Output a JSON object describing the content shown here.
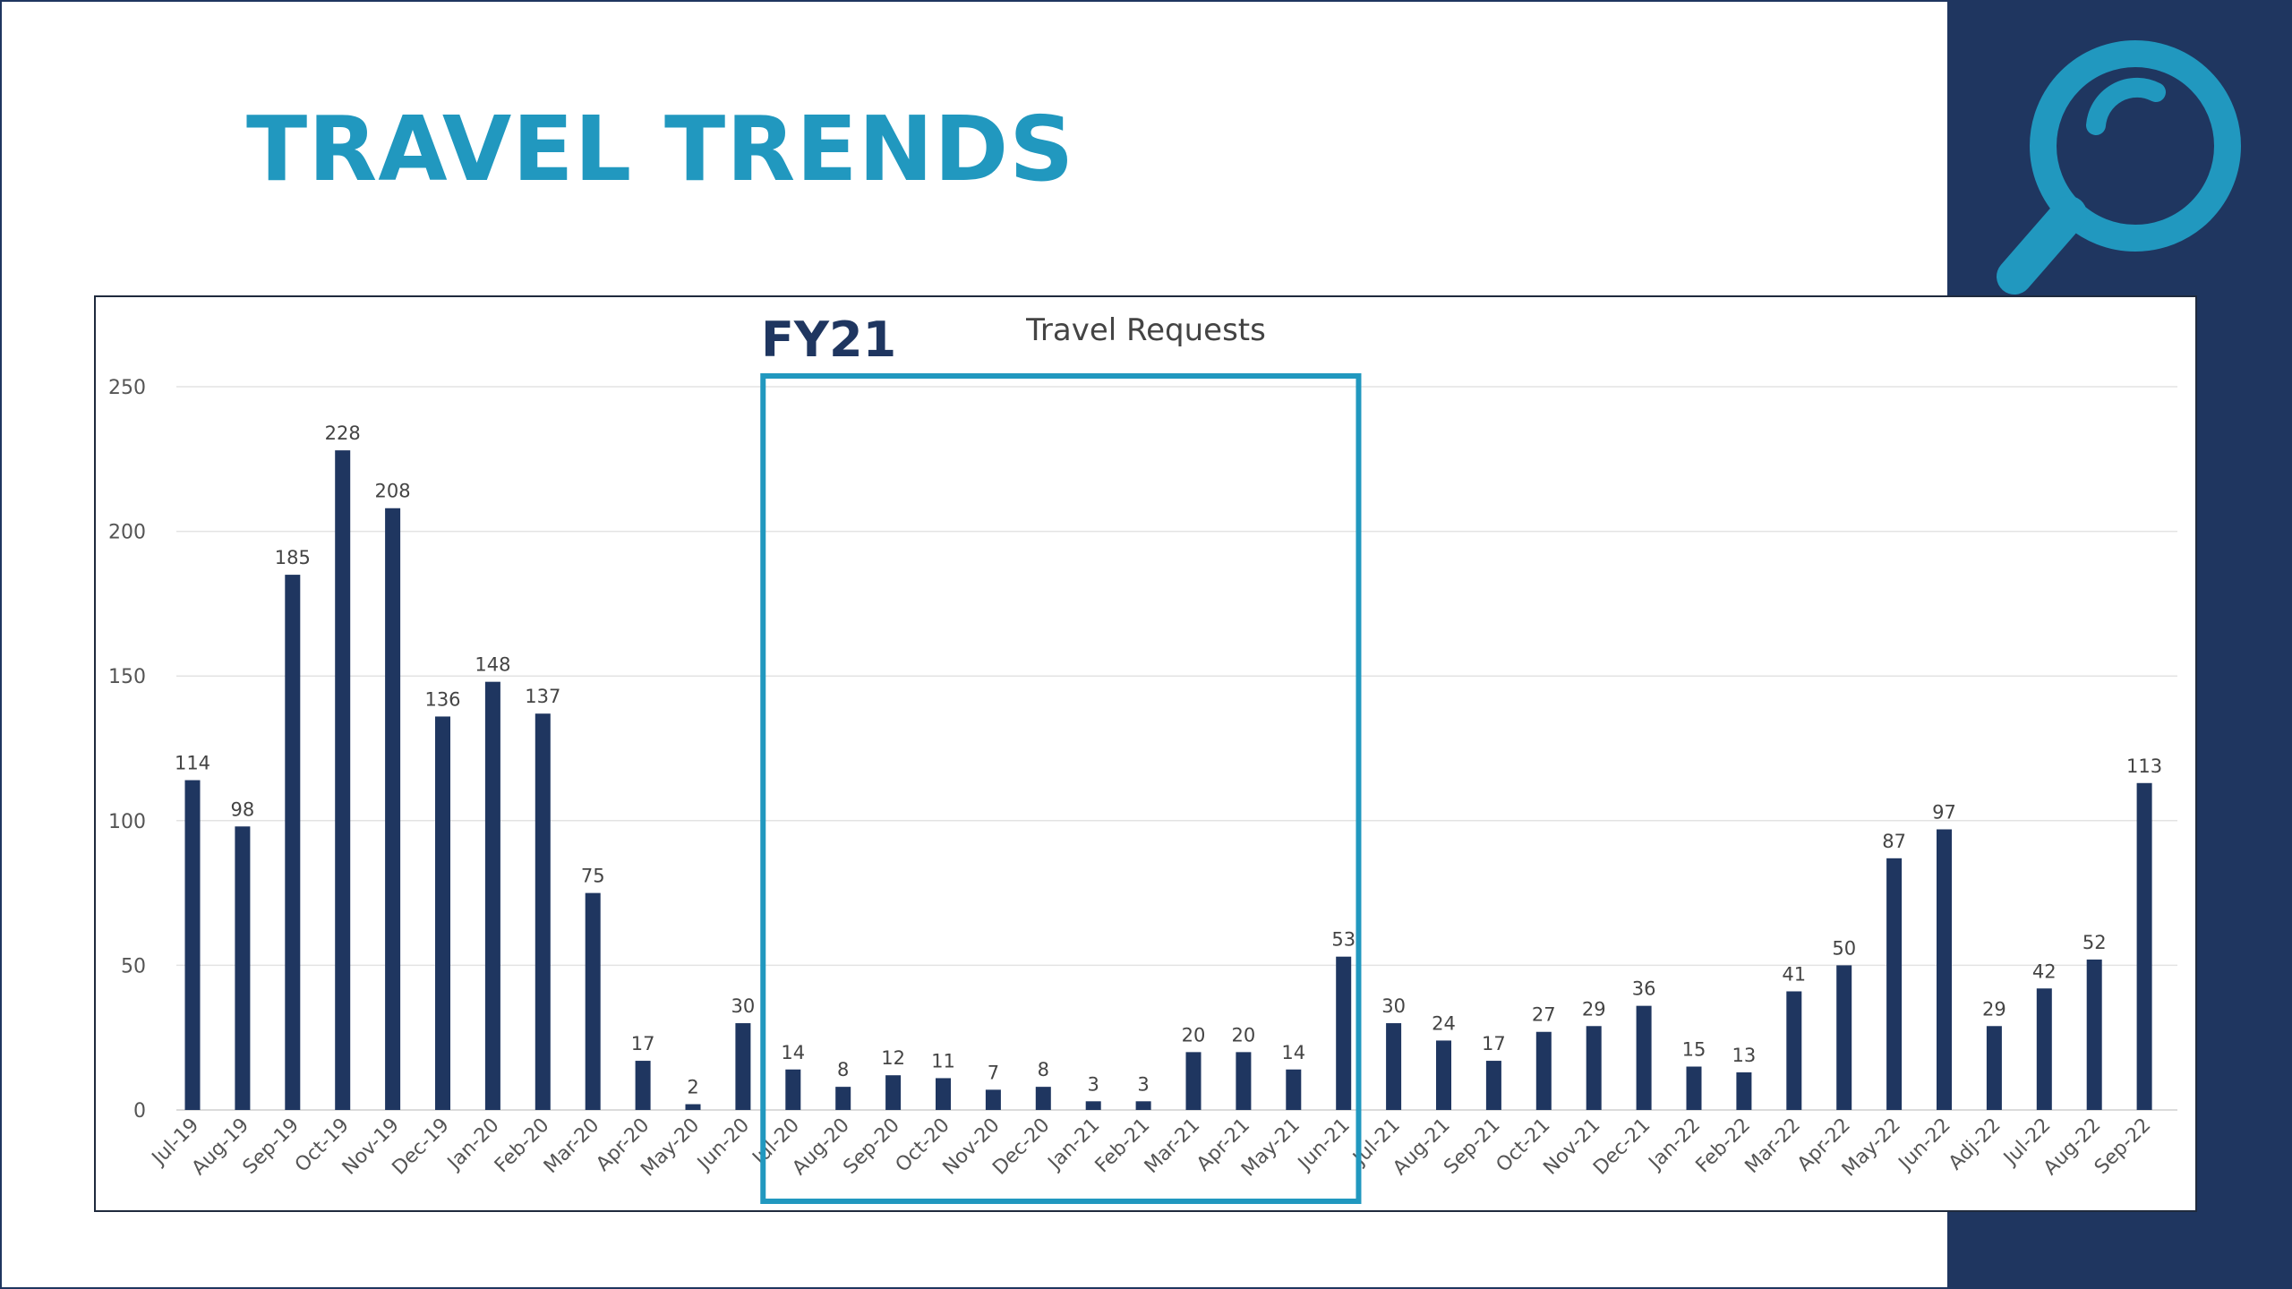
{
  "page": {
    "title": "TRAVEL TRENDS",
    "icon": "magnifying-glass-icon",
    "colors": {
      "brand_dark": "#1f3660",
      "accent": "#2198bf",
      "bar": "#1f3660"
    }
  },
  "chart_data": {
    "type": "bar",
    "title": "Travel Requests",
    "highlight": {
      "label": "FY21",
      "from": "Jul-20",
      "to": "Jun-21"
    },
    "categories": [
      "Jul-19",
      "Aug-19",
      "Sep-19",
      "Oct-19",
      "Nov-19",
      "Dec-19",
      "Jan-20",
      "Feb-20",
      "Mar-20",
      "Apr-20",
      "May-20",
      "Jun-20",
      "Jul-20",
      "Aug-20",
      "Sep-20",
      "Oct-20",
      "Nov-20",
      "Dec-20",
      "Jan-21",
      "Feb-21",
      "Mar-21",
      "Apr-21",
      "May-21",
      "Jun-21",
      "Jul-21",
      "Aug-21",
      "Sep-21",
      "Oct-21",
      "Nov-21",
      "Dec-21",
      "Jan-22",
      "Feb-22",
      "Mar-22",
      "Apr-22",
      "May-22",
      "Jun-22",
      "Adj-22",
      "Jul-22",
      "Aug-22",
      "Sep-22"
    ],
    "values": [
      114,
      98,
      185,
      228,
      208,
      136,
      148,
      137,
      75,
      17,
      2,
      30,
      14,
      8,
      12,
      11,
      7,
      8,
      3,
      3,
      20,
      20,
      14,
      53,
      30,
      24,
      17,
      27,
      29,
      36,
      15,
      13,
      41,
      50,
      87,
      97,
      29,
      42,
      52,
      113
    ],
    "yticks": [
      0,
      50,
      100,
      150,
      200,
      250
    ],
    "ylim": [
      0,
      250
    ],
    "xlabel": "",
    "ylabel": "",
    "grid": true,
    "legend": "none"
  }
}
